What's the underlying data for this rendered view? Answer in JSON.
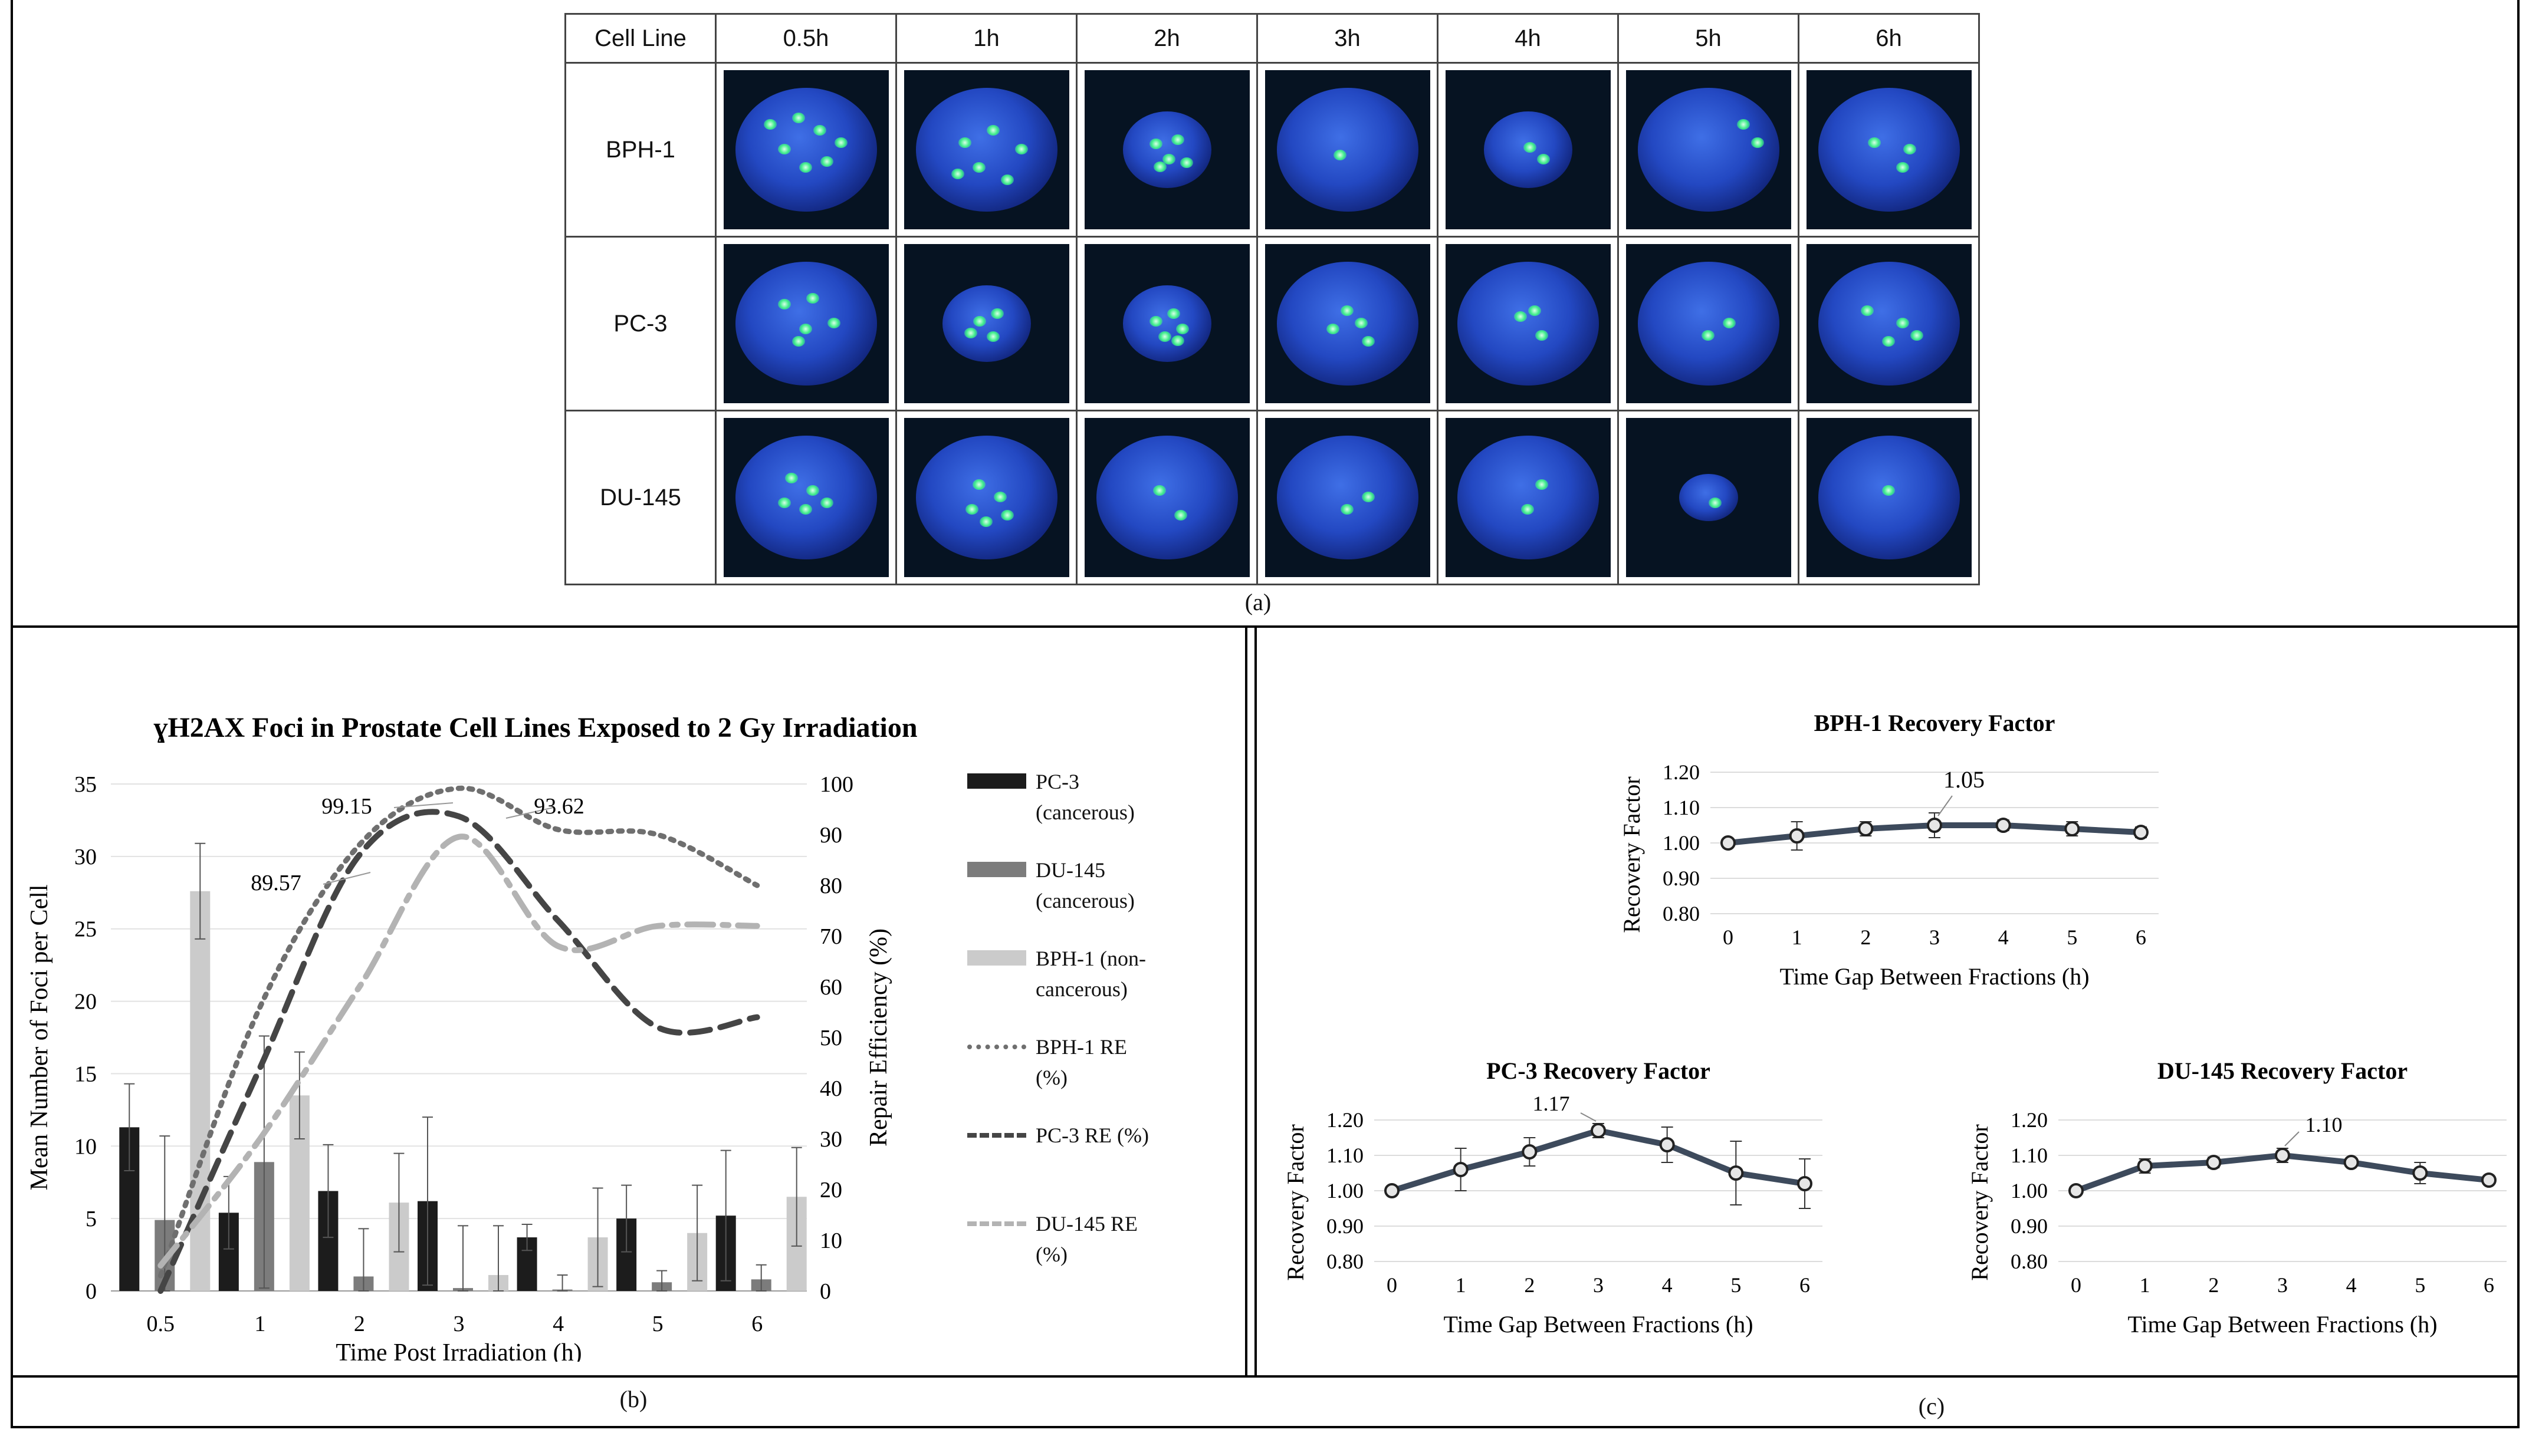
{
  "panel_a": {
    "caption": "(a)",
    "header": [
      "Cell Line",
      "0.5h",
      "1h",
      "2h",
      "3h",
      "4h",
      "5h",
      "6h"
    ],
    "rows": [
      {
        "label": "BPH-1"
      },
      {
        "label": "PC-3"
      },
      {
        "label": "DU-145"
      }
    ]
  },
  "panel_b": {
    "caption": "(b)",
    "legend": {
      "pc3": "PC-3 (cancerous)",
      "du145": "DU-145 (cancerous)",
      "bph1": "BPH-1 (non-cancerous)",
      "bph1_re": "BPH-1 RE (%)",
      "pc3_re": "PC-3 RE (%)",
      "du145_re": "DU-145 RE (%)"
    }
  },
  "panel_c": {
    "caption": "(c)"
  },
  "chart_data": [
    {
      "type": "bar",
      "title": "ɣH2AX Foci in Prostate Cell Lines Exposed to 2 Gy Irradiation",
      "xlabel": "Time Post Irradiation (h)",
      "ylabel": "Mean Number of Foci per Cell",
      "y2label": "Repair Efficiency (%)",
      "categories": [
        "0.5",
        "1",
        "2",
        "3",
        "4",
        "5",
        "6"
      ],
      "ylim": [
        0,
        35
      ],
      "yticks": [
        "0",
        "5",
        "10",
        "15",
        "20",
        "25",
        "30",
        "35"
      ],
      "y2lim": [
        0,
        100
      ],
      "y2ticks": [
        "0",
        "10",
        "20",
        "30",
        "40",
        "50",
        "60",
        "70",
        "80",
        "90",
        "100"
      ],
      "series": [
        {
          "name": "PC-3 (cancerous)",
          "color": "#1c1c1c",
          "values": [
            11.3,
            5.4,
            6.9,
            6.2,
            3.7,
            5.0,
            5.2
          ],
          "errors": [
            3.0,
            2.5,
            3.2,
            5.8,
            0.9,
            2.3,
            4.5
          ]
        },
        {
          "name": "DU-145 (cancerous)",
          "color": "#7c7c7c",
          "values": [
            4.9,
            8.9,
            1.0,
            0.2,
            0.1,
            0.6,
            0.8
          ],
          "errors": [
            5.8,
            8.7,
            3.3,
            4.3,
            1.0,
            0.8,
            1.0
          ]
        },
        {
          "name": "BPH-1 (non-cancerous)",
          "color": "#cbcbcb",
          "values": [
            27.6,
            13.5,
            6.1,
            1.1,
            3.7,
            4.0,
            6.5
          ],
          "errors": [
            3.3,
            3.0,
            3.4,
            3.4,
            3.4,
            3.3,
            3.4
          ]
        }
      ],
      "lines": [
        {
          "name": "BPH-1 RE (%)",
          "style": "dotted",
          "color": "#6f6f6f",
          "values": [
            3,
            56,
            88,
            99.15,
            91,
            90,
            80
          ]
        },
        {
          "name": "PC-3 RE (%)",
          "style": "dashed",
          "color": "#454545",
          "values": [
            0,
            44,
            86,
            93.62,
            73,
            52,
            54
          ]
        },
        {
          "name": "DU-145 RE (%)",
          "style": "dash-dot",
          "color": "#b3b3b3",
          "values": [
            5,
            30,
            60,
            89.57,
            68,
            72,
            72
          ]
        }
      ],
      "annotations": [
        "99.15",
        "93.62",
        "89.57"
      ]
    },
    {
      "type": "line",
      "title": "BPH-1 Recovery Factor",
      "xlabel": "Time Gap Between Fractions (h)",
      "ylabel": "Recovery Factor",
      "x": [
        "0",
        "1",
        "2",
        "3",
        "4",
        "5",
        "6"
      ],
      "values": [
        1.0,
        1.02,
        1.04,
        1.05,
        1.05,
        1.04,
        1.03
      ],
      "errors": [
        0,
        0.04,
        0.02,
        0.035,
        0.015,
        0.02,
        0.015
      ],
      "ylim": [
        0.8,
        1.2
      ],
      "yticks": [
        "0.80",
        "0.90",
        "1.00",
        "1.10",
        "1.20"
      ],
      "annotation": "1.05"
    },
    {
      "type": "line",
      "title": "PC-3 Recovery Factor",
      "xlabel": "Time Gap Between Fractions (h)",
      "ylabel": "Recovery Factor",
      "x": [
        "0",
        "1",
        "2",
        "3",
        "4",
        "5",
        "6"
      ],
      "values": [
        1.0,
        1.06,
        1.11,
        1.17,
        1.13,
        1.05,
        1.02
      ],
      "errors": [
        0,
        0.06,
        0.04,
        0.02,
        0.05,
        0.09,
        0.07
      ],
      "ylim": [
        0.8,
        1.2
      ],
      "yticks": [
        "0.80",
        "0.90",
        "1.00",
        "1.10",
        "1.20"
      ],
      "annotation": "1.17"
    },
    {
      "type": "line",
      "title": "DU-145 Recovery Factor",
      "xlabel": "Time Gap Between Fractions (h)",
      "ylabel": "Recovery Factor",
      "x": [
        "0",
        "1",
        "2",
        "3",
        "4",
        "5",
        "6"
      ],
      "values": [
        1.0,
        1.07,
        1.08,
        1.1,
        1.08,
        1.05,
        1.03
      ],
      "errors": [
        0,
        0.02,
        0.015,
        0.02,
        0.01,
        0.03,
        0.01
      ],
      "ylim": [
        0.8,
        1.2
      ],
      "yticks": [
        "0.80",
        "0.90",
        "1.00",
        "1.10",
        "1.20"
      ],
      "annotation": "1.10"
    }
  ]
}
